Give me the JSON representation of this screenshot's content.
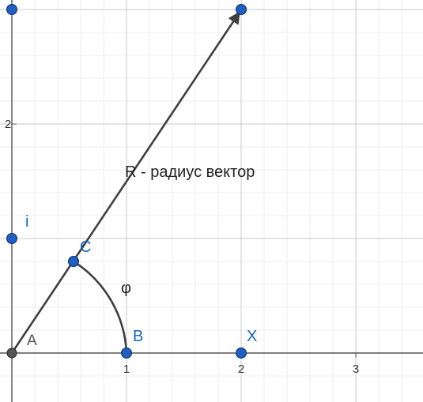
{
  "axes": {
    "x_ticks": [
      "1",
      "2",
      "3"
    ],
    "y_ticks": [
      "2"
    ]
  },
  "points": {
    "A": "A",
    "B": "B",
    "C": "C",
    "X": "X",
    "i": "i"
  },
  "vector_label": "R - радиус вектор",
  "angle_label": "φ",
  "colors": {
    "point_fill": "#1e5fbf",
    "point_stroke": "#0d2f6b",
    "vector": "#3f3f3f",
    "grid_major": "#c9c9c9",
    "grid_minor": "#eeeeee",
    "label": "#1565c0"
  }
}
